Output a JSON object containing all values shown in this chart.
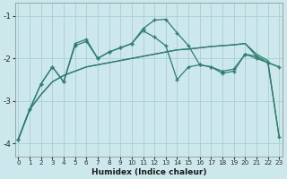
{
  "xlabel": "Humidex (Indice chaleur)",
  "bg_color": "#cce8ec",
  "grid_color": "#aacdd4",
  "line_color": "#2e7d6e",
  "x_ticks": [
    0,
    1,
    2,
    3,
    4,
    5,
    6,
    7,
    8,
    9,
    10,
    11,
    12,
    13,
    14,
    15,
    16,
    17,
    18,
    19,
    20,
    21,
    22,
    23
  ],
  "y_ticks": [
    -4,
    -3,
    -2,
    -1
  ],
  "ylim": [
    -4.3,
    -0.7
  ],
  "xlim": [
    -0.3,
    23.3
  ],
  "line1_x": [
    0,
    1,
    2,
    3,
    4,
    5,
    6,
    7,
    8,
    9,
    10,
    11,
    12,
    13,
    14,
    15,
    16,
    17,
    18,
    19,
    20,
    21,
    22,
    23
  ],
  "line1_y": [
    -3.9,
    -3.2,
    -2.85,
    -2.55,
    -2.4,
    -2.3,
    -2.2,
    -2.15,
    -2.1,
    -2.05,
    -2.0,
    -1.95,
    -1.9,
    -1.85,
    -1.8,
    -1.78,
    -1.75,
    -1.72,
    -1.7,
    -1.68,
    -1.65,
    -1.95,
    -2.1,
    -2.2
  ],
  "line2_x": [
    0,
    1,
    2,
    3,
    4,
    5,
    6,
    7,
    8,
    9,
    10,
    11,
    12,
    13,
    14,
    15,
    16,
    17,
    18,
    19,
    20,
    21,
    22,
    23
  ],
  "line2_y": [
    -3.9,
    -3.2,
    -2.85,
    -2.55,
    -2.4,
    -2.3,
    -2.2,
    -2.15,
    -2.1,
    -2.05,
    -2.0,
    -1.95,
    -1.9,
    -1.85,
    -1.8,
    -1.78,
    -1.75,
    -1.72,
    -1.7,
    -1.68,
    -1.65,
    -1.9,
    -2.05,
    -3.85
  ],
  "line3_x": [
    0,
    1,
    2,
    3,
    4,
    5,
    6,
    7,
    8,
    9,
    10,
    11,
    12,
    13,
    14,
    15,
    16,
    17,
    18,
    19,
    20,
    21,
    22,
    23
  ],
  "line3_y": [
    -3.9,
    -3.2,
    -2.6,
    -2.2,
    -2.55,
    -1.65,
    -1.55,
    -2.0,
    -1.85,
    -1.75,
    -1.65,
    -1.3,
    -1.1,
    -1.08,
    -1.4,
    -1.7,
    -2.15,
    -2.2,
    -2.35,
    -2.3,
    -1.9,
    -2.0,
    -2.1,
    -2.2
  ],
  "line4_x": [
    0,
    1,
    2,
    3,
    4,
    5,
    6,
    7,
    8,
    9,
    10,
    11,
    12,
    13,
    14,
    15,
    16,
    17,
    18,
    19,
    20,
    21,
    22,
    23
  ],
  "line4_y": [
    -3.9,
    -3.2,
    -2.6,
    -2.2,
    -2.55,
    -1.7,
    -1.6,
    -2.0,
    -1.85,
    -1.75,
    -1.65,
    -1.35,
    -1.5,
    -1.7,
    -2.5,
    -2.2,
    -2.15,
    -2.2,
    -2.3,
    -2.25,
    -1.9,
    -1.95,
    -2.1,
    -3.85
  ]
}
